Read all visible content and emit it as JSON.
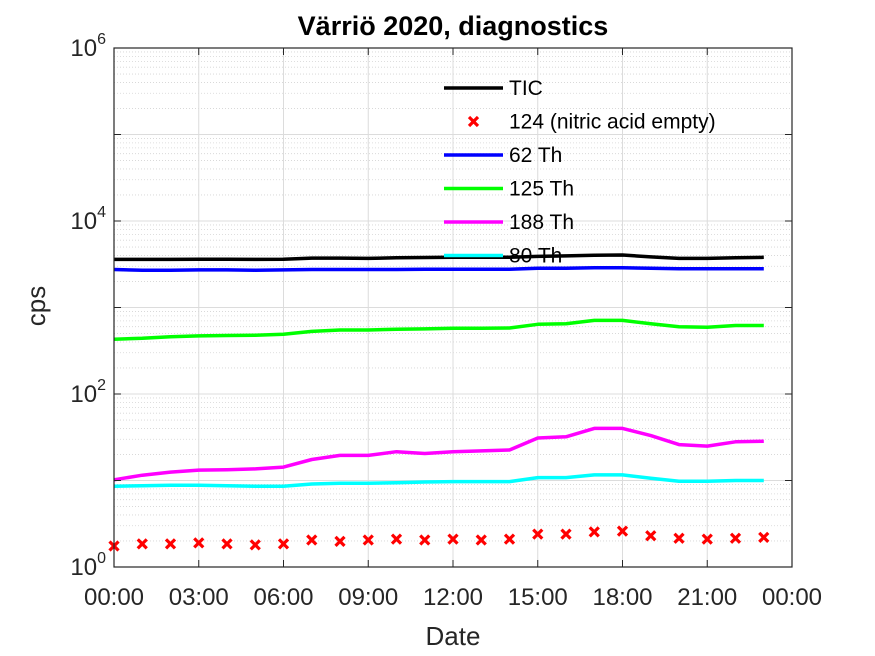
{
  "chart_data": {
    "type": "line",
    "title": "Värriö 2020, diagnostics",
    "xlabel": "Date",
    "ylabel": "cps",
    "yscale": "log",
    "ylim": [
      1,
      1000000
    ],
    "xlim": [
      "00:00",
      "24:00"
    ],
    "x_tick_labels": [
      "00:00",
      "03:00",
      "06:00",
      "09:00",
      "12:00",
      "15:00",
      "18:00",
      "21:00",
      "00:00"
    ],
    "y_ticks": [
      {
        "base": "10",
        "exp": "0"
      },
      {
        "base": "10",
        "exp": "2"
      },
      {
        "base": "10",
        "exp": "4"
      },
      {
        "base": "10",
        "exp": "6"
      }
    ],
    "grid": true,
    "legend_position": "top-right",
    "x": [
      "00:00",
      "01:00",
      "02:00",
      "03:00",
      "04:00",
      "05:00",
      "06:00",
      "07:00",
      "08:00",
      "09:00",
      "10:00",
      "11:00",
      "12:00",
      "13:00",
      "14:00",
      "15:00",
      "16:00",
      "17:00",
      "18:00",
      "19:00",
      "20:00",
      "21:00",
      "22:00",
      "23:00"
    ],
    "series": [
      {
        "name": "TIC",
        "color": "#000000",
        "style": "line",
        "values": [
          3600,
          3600,
          3600,
          3620,
          3620,
          3600,
          3620,
          3720,
          3720,
          3700,
          3750,
          3780,
          3800,
          3800,
          3800,
          3900,
          3950,
          4020,
          4050,
          3850,
          3700,
          3700,
          3750,
          3800
        ]
      },
      {
        "name": "124 (nitric acid empty)",
        "color": "#ff0000",
        "style": "marker",
        "values": [
          1.75,
          1.85,
          1.85,
          1.9,
          1.85,
          1.8,
          1.85,
          2.05,
          1.98,
          2.05,
          2.1,
          2.05,
          2.1,
          2.05,
          2.1,
          2.4,
          2.4,
          2.55,
          2.6,
          2.3,
          2.15,
          2.1,
          2.15,
          2.2
        ]
      },
      {
        "name": "62 Th",
        "color": "#0000ff",
        "style": "line",
        "values": [
          2750,
          2700,
          2700,
          2720,
          2720,
          2700,
          2720,
          2750,
          2750,
          2750,
          2750,
          2770,
          2770,
          2770,
          2770,
          2850,
          2850,
          2880,
          2880,
          2850,
          2800,
          2800,
          2800,
          2800
        ]
      },
      {
        "name": "125 Th",
        "color": "#00ff00",
        "style": "line",
        "values": [
          430,
          440,
          460,
          470,
          475,
          478,
          490,
          530,
          550,
          550,
          560,
          565,
          575,
          575,
          580,
          640,
          650,
          710,
          710,
          650,
          600,
          590,
          620,
          620
        ]
      },
      {
        "name": "188 Th",
        "color": "#ff00ff",
        "style": "line",
        "values": [
          10.2,
          11.5,
          12.5,
          13.2,
          13.3,
          13.6,
          14.3,
          17.5,
          19.5,
          19.5,
          21.5,
          20.5,
          21.5,
          22,
          22.5,
          31,
          32,
          40,
          40,
          33,
          26,
          25,
          28,
          28.5
        ]
      },
      {
        "name": "80 Th",
        "color": "#00ffff",
        "style": "line",
        "values": [
          8.6,
          8.7,
          8.8,
          8.8,
          8.7,
          8.6,
          8.6,
          9.1,
          9.3,
          9.3,
          9.4,
          9.6,
          9.7,
          9.7,
          9.7,
          10.8,
          10.8,
          11.6,
          11.6,
          10.6,
          9.8,
          9.8,
          10,
          10
        ]
      }
    ]
  }
}
